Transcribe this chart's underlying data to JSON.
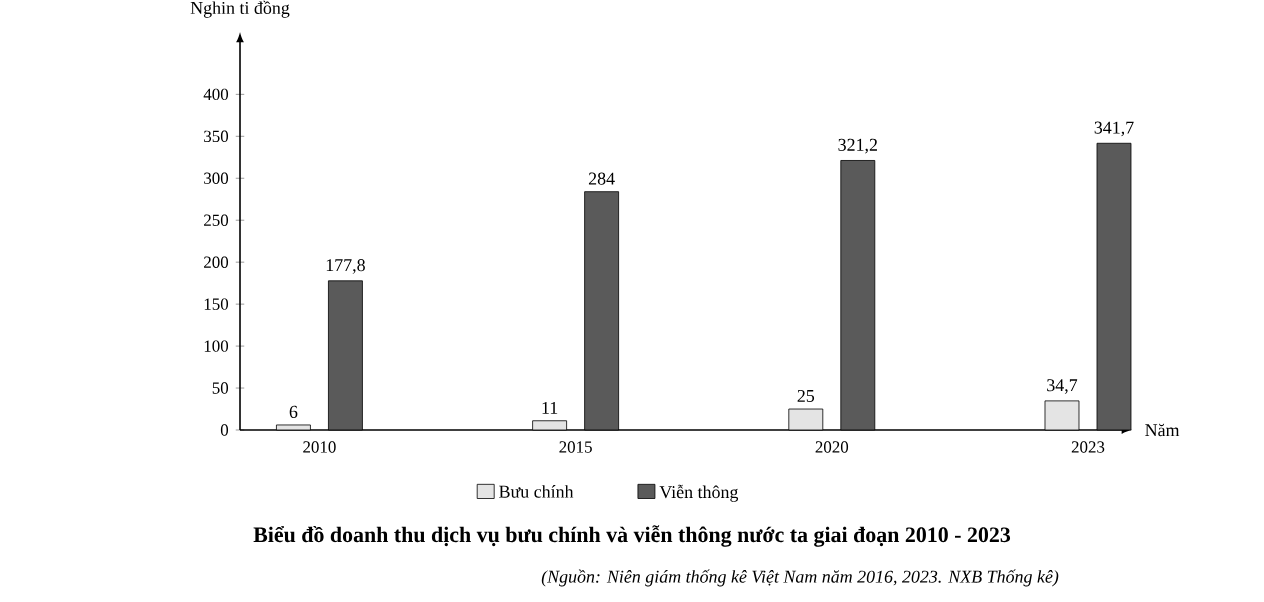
{
  "chart_data": {
    "type": "bar",
    "title": "Biểu đồ doanh thu dịch vụ bưu chính và viễn thông nước ta giai đoạn 2010 - 2023",
    "ylabel": "Nghin ti đồng",
    "xlabel": "Năm",
    "annotations": [
      "(Nguồn: Niên giám thống kê Việt Nam năm 2016, 2023. NXB Thống kê)"
    ],
    "categories": [
      "2010",
      "2015",
      "2020",
      "2023"
    ],
    "series": [
      {
        "name": "Bưu chính",
        "color": "#e4e4e4",
        "values": [
          6,
          11,
          25,
          34.7
        ],
        "value_labels": [
          "6",
          "11",
          "25",
          "34,7"
        ]
      },
      {
        "name": "Viễn thông",
        "color": "#5a5a5a",
        "values": [
          177.8,
          284,
          321.2,
          341.7
        ],
        "value_labels": [
          "177,8",
          "284",
          "321,2",
          "341,7"
        ]
      }
    ],
    "ylim": [
      0,
      460
    ],
    "yticks": [
      0,
      50,
      100,
      150,
      200,
      250,
      300,
      350,
      400
    ],
    "legend": "bottom",
    "grid": false
  }
}
